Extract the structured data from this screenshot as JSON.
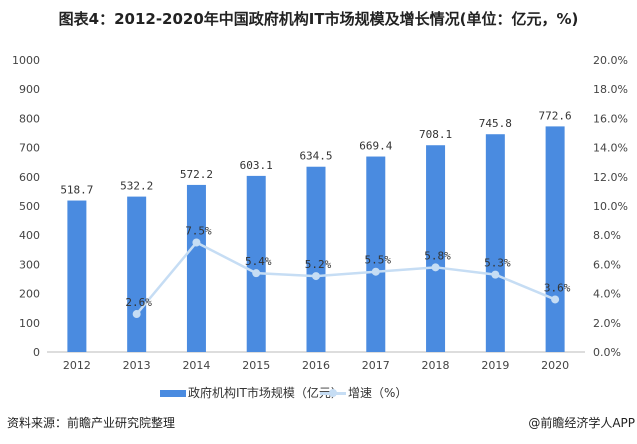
{
  "chart_data": {
    "type": "bar+line",
    "title": "图表4：2012-2020年中国政府机构IT市场规模及增长情况(单位：亿元，%)",
    "categories": [
      "2012",
      "2013",
      "2014",
      "2015",
      "2016",
      "2017",
      "2018",
      "2019",
      "2020"
    ],
    "series": [
      {
        "name": "政府机构IT市场规模（亿元）",
        "type": "bar",
        "axis": "left",
        "color": "#4a8be0",
        "values": [
          518.7,
          532.2,
          572.2,
          603.1,
          634.5,
          669.4,
          708.1,
          745.8,
          772.6
        ],
        "labels": [
          "518.7",
          "532.2",
          "572.2",
          "603.1",
          "634.5",
          "669.4",
          "708.1",
          "745.8",
          "772.6"
        ]
      },
      {
        "name": "增速（%）",
        "type": "line",
        "axis": "right",
        "color": "#c6ddf4",
        "values": [
          null,
          2.6,
          7.5,
          5.4,
          5.2,
          5.5,
          5.8,
          5.3,
          3.6
        ],
        "labels": [
          "",
          "2.6%",
          "7.5%",
          "5.4%",
          "5.2%",
          "5.5%",
          "5.8%",
          "5.3%",
          "3.6%"
        ]
      }
    ],
    "ylim_left": [
      0,
      1000
    ],
    "yticks_left": [
      "0",
      "100",
      "200",
      "300",
      "400",
      "500",
      "600",
      "700",
      "800",
      "900",
      "1000"
    ],
    "ylim_right": [
      0,
      20
    ],
    "yticks_right": [
      "0.0%",
      "2.0%",
      "4.0%",
      "6.0%",
      "8.0%",
      "10.0%",
      "12.0%",
      "14.0%",
      "16.0%",
      "18.0%",
      "20.0%"
    ],
    "grid": false,
    "legend": "bottom"
  },
  "footer": {
    "source": "资料来源：前瞻产业研究院整理",
    "brand": "@前瞻经济学人APP"
  }
}
